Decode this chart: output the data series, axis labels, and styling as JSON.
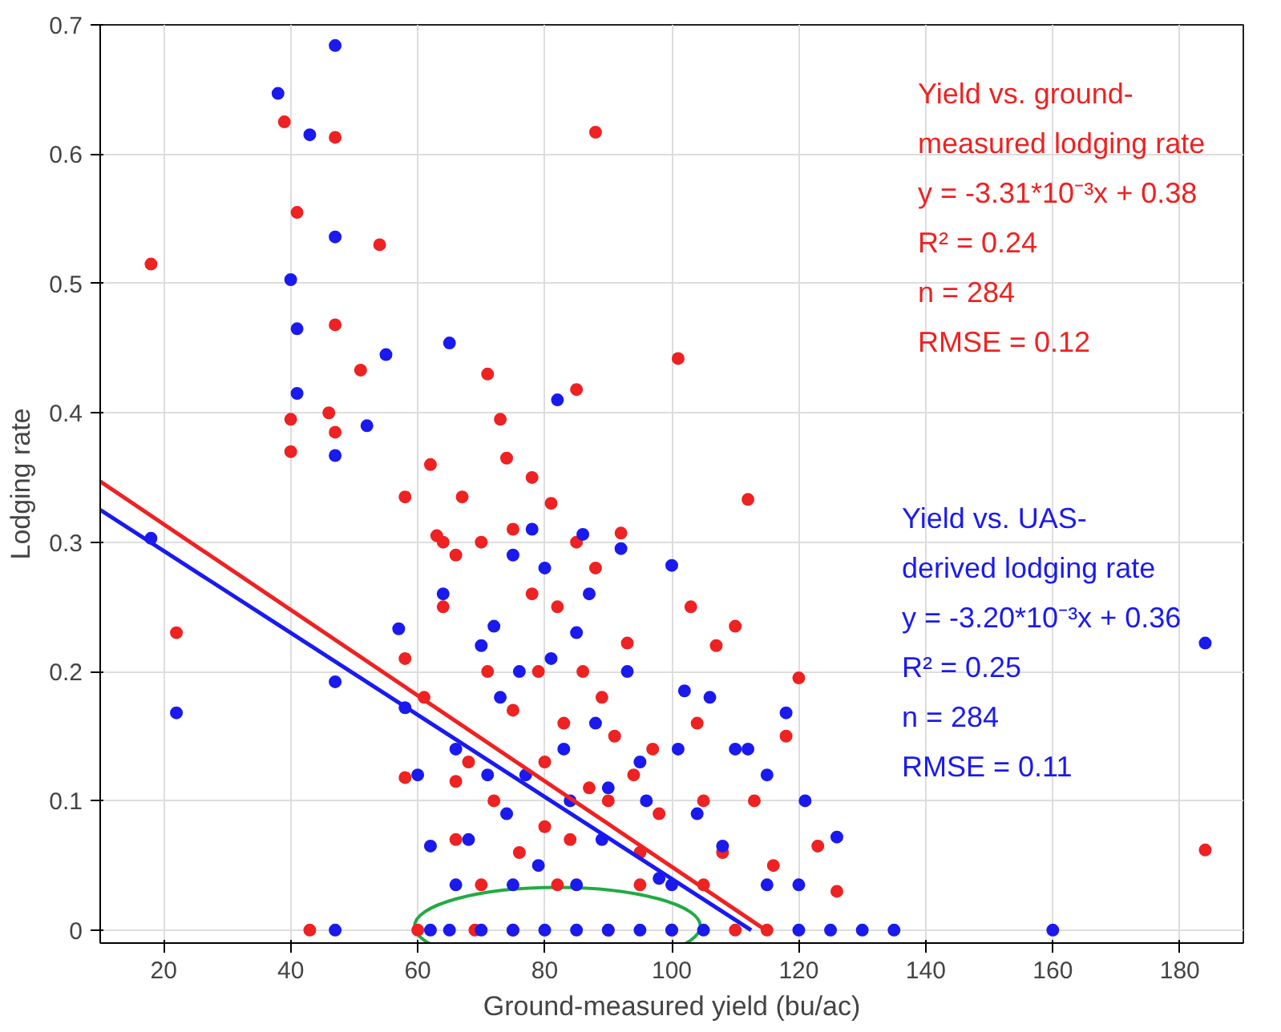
{
  "chart_data": {
    "type": "scatter",
    "xlabel": "Ground-measured yield (bu/ac)",
    "ylabel": "Lodging rate",
    "xlim": [
      10,
      190
    ],
    "ylim": [
      -0.01,
      0.7
    ],
    "xticks": [
      20,
      40,
      60,
      80,
      100,
      120,
      140,
      160,
      180
    ],
    "yticks": [
      0,
      0.1,
      0.2,
      0.3,
      0.4,
      0.5,
      0.6,
      0.7
    ],
    "grid": true,
    "annotations": [
      "Yield vs. ground-\nmeasured lodging rate\ny = -3.31*10⁻³x + 0.38\nR² = 0.24\nn = 284\nRMSE = 0.12",
      "Yield vs. UAS-\nderived lodging rate\ny = -3.20*10⁻³x + 0.36\nR² = 0.25\nn = 284\nRMSE = 0.11"
    ],
    "series": [
      {
        "marker": "circle",
        "color": "#ee2222",
        "x": [
          18,
          22,
          39,
          41,
          40,
          40,
          47,
          47,
          46,
          47,
          51,
          54,
          43,
          58,
          58,
          58,
          61,
          62,
          63,
          64,
          64,
          66,
          66,
          66,
          67,
          68,
          69,
          70,
          71,
          71,
          72,
          73,
          74,
          75,
          75,
          76,
          78,
          78,
          79,
          80,
          80,
          81,
          82,
          83,
          84,
          85,
          85,
          86,
          87,
          88,
          88,
          89,
          90,
          91,
          92,
          93,
          94,
          95,
          97,
          98,
          101,
          103,
          104,
          105,
          107,
          108,
          110,
          112,
          113,
          116,
          118,
          120,
          123,
          126,
          184,
          60,
          75,
          90,
          100,
          110,
          115,
          70,
          82,
          95,
          105
        ],
        "values": [
          0.515,
          0.23,
          0.625,
          0.555,
          0.395,
          0.37,
          0.613,
          0.468,
          0.4,
          0.385,
          0.433,
          0.53,
          0,
          0.335,
          0.21,
          0.118,
          0.18,
          0.36,
          0.305,
          0.3,
          0.25,
          0.29,
          0.115,
          0.07,
          0.335,
          0.13,
          0,
          0.3,
          0.43,
          0.2,
          0.1,
          0.395,
          0.365,
          0.31,
          0.17,
          0.06,
          0.35,
          0.26,
          0.2,
          0.13,
          0.08,
          0.33,
          0.25,
          0.16,
          0.07,
          0.418,
          0.3,
          0.2,
          0.11,
          0.617,
          0.28,
          0.18,
          0.1,
          0.15,
          0.307,
          0.222,
          0.12,
          0.06,
          0.14,
          0.09,
          0.442,
          0.25,
          0.16,
          0.1,
          0.22,
          0.06,
          0.235,
          0.333,
          0.1,
          0.05,
          0.15,
          0.195,
          0.065,
          0.03,
          0.062,
          0,
          0,
          0,
          0,
          0,
          0,
          0.035,
          0.035,
          0.035,
          0.035
        ]
      },
      {
        "marker": "circle",
        "color": "#1a1aee",
        "x": [
          18,
          22,
          38,
          40,
          41,
          41,
          43,
          47,
          47,
          47,
          47,
          52,
          55,
          47,
          57,
          58,
          60,
          62,
          64,
          65,
          66,
          68,
          70,
          71,
          72,
          73,
          74,
          75,
          76,
          77,
          78,
          79,
          80,
          81,
          82,
          83,
          84,
          85,
          86,
          87,
          88,
          89,
          90,
          92,
          93,
          95,
          96,
          98,
          100,
          101,
          102,
          104,
          106,
          108,
          110,
          112,
          115,
          118,
          121,
          126,
          184,
          160,
          135,
          130,
          125,
          120,
          62,
          65,
          70,
          75,
          80,
          85,
          90,
          95,
          100,
          105,
          66,
          75,
          85,
          100,
          115,
          120
        ],
        "values": [
          0.303,
          0.168,
          0.647,
          0.503,
          0.465,
          0.415,
          0.615,
          0.684,
          0.536,
          0.367,
          0.192,
          0.39,
          0.445,
          0,
          0.233,
          0.172,
          0.12,
          0.065,
          0.26,
          0.454,
          0.14,
          0.07,
          0.22,
          0.12,
          0.235,
          0.18,
          0.09,
          0.29,
          0.2,
          0.12,
          0.31,
          0.05,
          0.28,
          0.21,
          0.41,
          0.14,
          0.1,
          0.23,
          0.306,
          0.26,
          0.16,
          0.07,
          0.11,
          0.295,
          0.2,
          0.13,
          0.1,
          0.04,
          0.282,
          0.14,
          0.185,
          0.09,
          0.18,
          0.065,
          0.14,
          0.14,
          0.12,
          0.168,
          0.1,
          0.072,
          0.222,
          0,
          0,
          0,
          0,
          0,
          0,
          0,
          0,
          0,
          0,
          0,
          0,
          0,
          0,
          0,
          0.035,
          0.035,
          0.035,
          0.035,
          0.035,
          0.035
        ]
      },
      {
        "type": "line",
        "color": "#ee2222",
        "x": [
          10,
          114.8
        ],
        "values": [
          0.347,
          0
        ]
      },
      {
        "type": "line",
        "color": "#1a1aee",
        "x": [
          10,
          112.5
        ],
        "values": [
          0.325,
          0
        ]
      }
    ]
  }
}
